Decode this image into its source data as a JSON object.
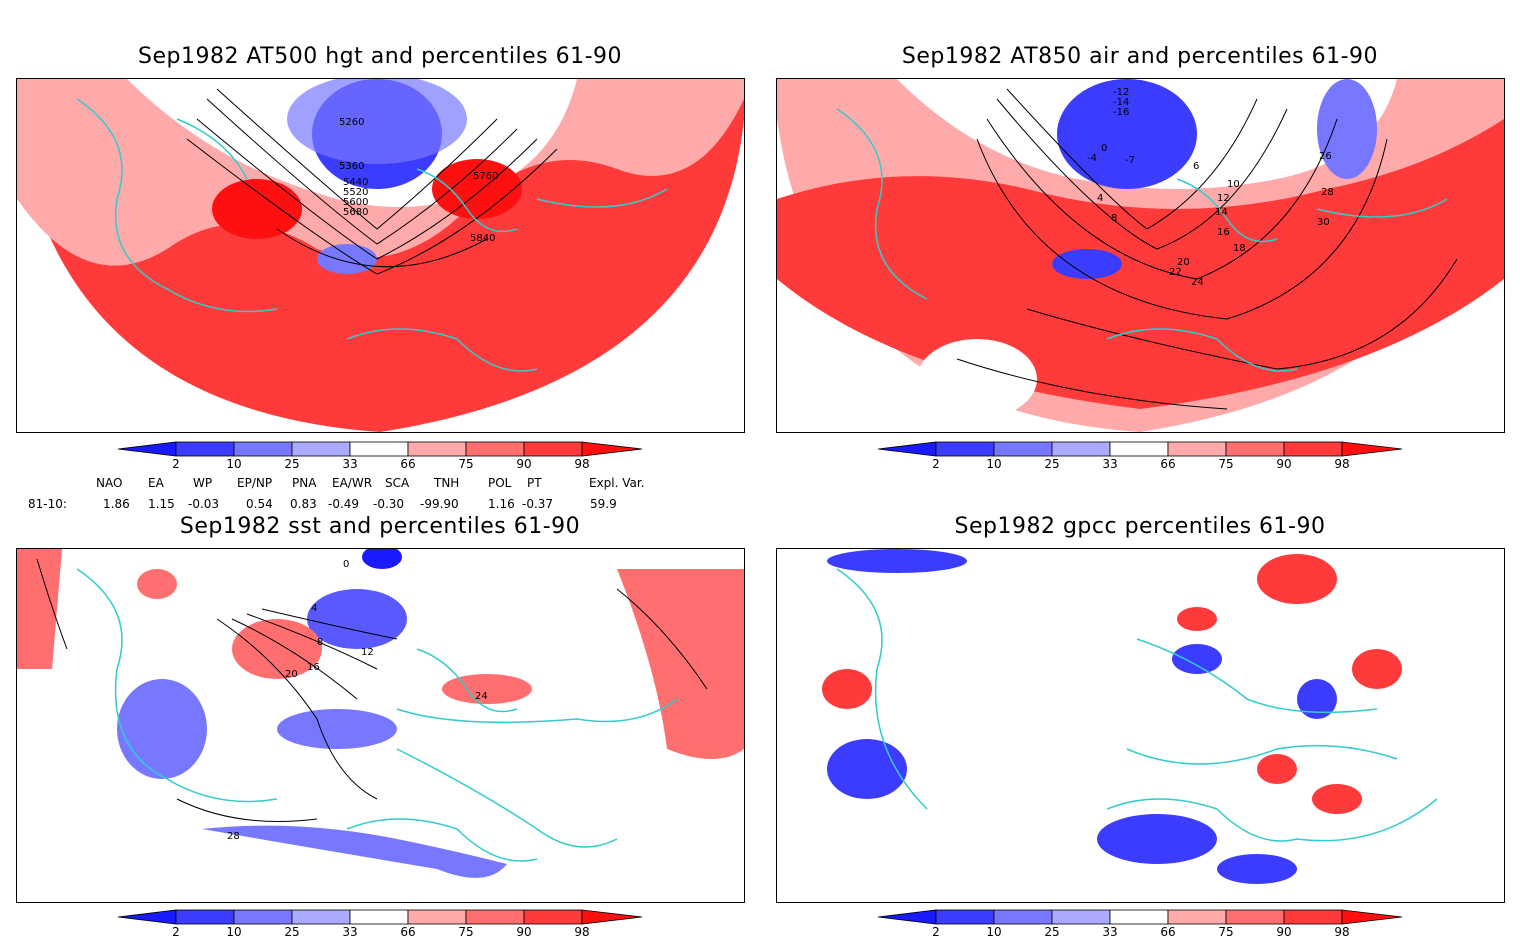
{
  "panels": [
    {
      "id": "p1",
      "title": "Sep1982 AT500 hgt and percentiles 61-90",
      "contour_labels": [
        "5260",
        "5360",
        "5440",
        "5520",
        "5600",
        "5680",
        "5760",
        "5840"
      ]
    },
    {
      "id": "p2",
      "title": "Sep1982 AT850 air and percentiles 61-90",
      "contour_labels": [
        "-12",
        "-14",
        "-16",
        "-4",
        "0",
        "-7",
        "4",
        "6",
        "8",
        "10",
        "12",
        "14",
        "16",
        "18",
        "20",
        "22",
        "24",
        "26",
        "28",
        "30"
      ]
    },
    {
      "id": "p3",
      "title": "Sep1982 sst and percentiles 61-90",
      "contour_labels": [
        "0",
        "4",
        "8",
        "12",
        "16",
        "20",
        "24",
        "28"
      ]
    },
    {
      "id": "p4",
      "title": "Sep1982 gpcc percentiles 61-90",
      "contour_labels": []
    }
  ],
  "colorbar": {
    "labels": [
      "2",
      "10",
      "25",
      "33",
      "66",
      "75",
      "90",
      "98"
    ],
    "colors": [
      "#1a1aff",
      "#3c3cff",
      "#7777ff",
      "#aaaaff",
      "#ffffff",
      "#ffaaaa",
      "#ff6f6f",
      "#ff3a3a",
      "#ff1010"
    ]
  },
  "indices": {
    "headers": [
      "NAO",
      "EA",
      "WP",
      "EP/NP",
      "PNA",
      "EA/WR",
      "SCA",
      "TNH",
      "POL",
      "PT",
      "Expl. Var."
    ],
    "row_label": "81-10:",
    "values": [
      "1.86",
      "1.15",
      "-0.03",
      "0.54",
      "0.83",
      "-0.49",
      "-0.30",
      "-99.90",
      "1.16",
      "-0.37",
      "59.9"
    ]
  },
  "colors": {
    "land_outline": "#33cccc",
    "contour": "#000000",
    "anomaly_red": "#ff3a3a",
    "anomaly_blue": "#3c3cff"
  }
}
